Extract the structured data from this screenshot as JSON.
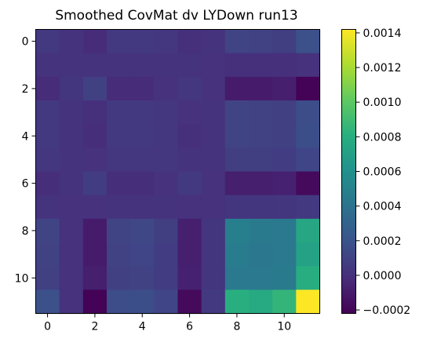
{
  "chart_data": {
    "type": "heatmap",
    "title": "Smoothed CovMat dv LYDown run13",
    "colormap": "viridis",
    "vmin": -0.00022,
    "vmax": 0.00142,
    "x_ticks": [
      0,
      2,
      4,
      6,
      8,
      10
    ],
    "y_ticks": [
      0,
      2,
      4,
      6,
      8,
      10
    ],
    "x_tick_labels": [
      "0",
      "2",
      "4",
      "6",
      "8",
      "10"
    ],
    "y_tick_labels": [
      "0",
      "2",
      "4",
      "6",
      "8",
      "10"
    ],
    "colorbar_ticks": [
      -0.0002,
      0.0,
      0.0002,
      0.0004,
      0.0006,
      0.0008,
      0.001,
      0.0012,
      0.0014
    ],
    "colorbar_tick_labels": [
      "−0.0002",
      "0.0000",
      "0.0002",
      "0.0004",
      "0.0006",
      "0.0008",
      "0.0010",
      "0.0012",
      "0.0014"
    ],
    "matrix": [
      [
        5e-05,
        2e-05,
        -2e-05,
        5e-05,
        5e-05,
        4e-05,
        0.0,
        2e-05,
        0.00011,
        0.0001,
        8e-05,
        0.00018
      ],
      [
        2e-05,
        2e-05,
        2e-05,
        2e-05,
        2e-05,
        2e-05,
        2e-05,
        1e-05,
        0.0,
        0.0,
        0.0,
        1e-05
      ],
      [
        -2e-05,
        3e-05,
        9e-05,
        -2e-05,
        -2e-05,
        1e-05,
        4e-05,
        1e-05,
        -0.0001,
        -0.0001,
        -8e-05,
        -0.00021
      ],
      [
        5e-05,
        2e-05,
        0.0,
        5e-05,
        5e-05,
        4e-05,
        1e-05,
        2e-05,
        0.00011,
        0.0001,
        9e-05,
        0.00016
      ],
      [
        5e-05,
        2e-05,
        -1e-05,
        5e-05,
        5e-05,
        4e-05,
        0.0,
        2e-05,
        0.00011,
        0.0001,
        9e-05,
        0.00017
      ],
      [
        4e-05,
        2e-05,
        1e-05,
        4e-05,
        4e-05,
        4e-05,
        2e-05,
        2e-05,
        8e-05,
        8e-05,
        7e-05,
        0.00012
      ],
      [
        -1e-05,
        2e-05,
        7e-05,
        -1e-05,
        -1e-05,
        1e-05,
        5e-05,
        1e-05,
        -8e-05,
        -8e-05,
        -7e-05,
        -0.00018
      ],
      [
        2e-05,
        1e-05,
        1e-05,
        2e-05,
        2e-05,
        2e-05,
        1e-05,
        1e-05,
        3e-05,
        3e-05,
        3e-05,
        5e-05
      ],
      [
        0.00011,
        1e-05,
        -0.0001,
        0.00011,
        0.00013,
        8e-05,
        -8e-05,
        3e-05,
        0.00048,
        0.00045,
        0.00044,
        0.00075
      ],
      [
        0.0001,
        1e-05,
        -0.0001,
        0.0001,
        0.00012,
        7e-05,
        -8e-05,
        3e-05,
        0.00046,
        0.00043,
        0.00044,
        0.00072
      ],
      [
        9e-05,
        1e-05,
        -8e-05,
        9e-05,
        0.0001,
        7e-05,
        -7e-05,
        3e-05,
        0.00044,
        0.00044,
        0.00045,
        0.0008
      ],
      [
        0.00018,
        1e-05,
        -0.00021,
        0.00016,
        0.00017,
        0.00012,
        -0.00018,
        5e-05,
        0.00081,
        0.00077,
        0.00085,
        0.00142
      ]
    ]
  }
}
